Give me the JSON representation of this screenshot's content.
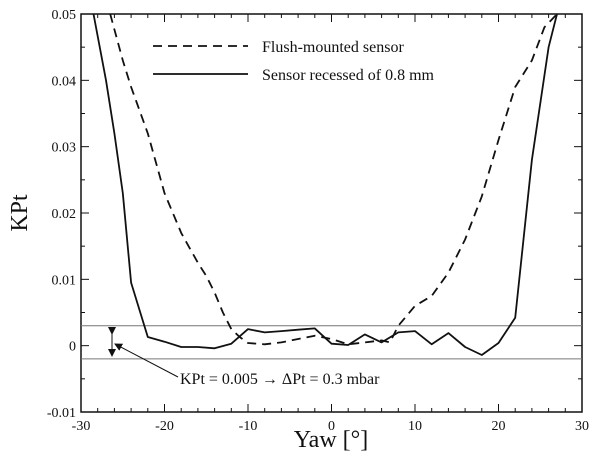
{
  "chart_data": {
    "type": "line",
    "xlabel": "Yaw [°]",
    "ylabel": "KPt",
    "xlim": [
      -30,
      30
    ],
    "ylim": [
      -0.01,
      0.05
    ],
    "xticks": [
      "-30",
      "-20",
      "-10",
      "0",
      "10",
      "20",
      "30"
    ],
    "yticks": [
      "-0.01",
      "0",
      "0.01",
      "0.02",
      "0.03",
      "0.04",
      "0.05"
    ],
    "grid": false,
    "legend_position": "top-center",
    "series": [
      {
        "name": "Flush-mounted sensor",
        "style": "dashed",
        "x": [
          -26.5,
          -25,
          -24,
          -22,
          -20,
          -18,
          -16,
          -15,
          -14,
          -13,
          -12,
          -11,
          -10,
          -8,
          -6,
          -4,
          -2,
          0,
          2,
          4,
          6,
          7,
          8,
          10,
          12,
          14,
          16,
          18,
          20,
          22,
          24,
          25.5,
          27
        ],
        "y": [
          0.05,
          0.043,
          0.039,
          0.032,
          0.023,
          0.017,
          0.0125,
          0.0105,
          0.008,
          0.005,
          0.0025,
          0.0013,
          0.0004,
          0.0002,
          0.0005,
          0.001,
          0.0015,
          0.001,
          0.0002,
          0.0005,
          0.0008,
          0.0005,
          0.003,
          0.006,
          0.0075,
          0.011,
          0.016,
          0.0225,
          0.031,
          0.039,
          0.043,
          0.048,
          0.05
        ]
      },
      {
        "name": "Sensor recessed of 0.8 mm",
        "style": "solid",
        "x": [
          -28.5,
          -27,
          -26,
          -25,
          -24,
          -22,
          -20,
          -18,
          -16,
          -14,
          -12,
          -10,
          -8,
          -6,
          -4,
          -2,
          0,
          2,
          4,
          6,
          8,
          10,
          12,
          14,
          16,
          18,
          20,
          22,
          24,
          26,
          27
        ],
        "y": [
          0.05,
          0.04,
          0.032,
          0.023,
          0.0095,
          0.0013,
          0.0006,
          -0.0002,
          -0.0002,
          -0.0004,
          0.0003,
          0.0025,
          0.002,
          0.0022,
          0.0024,
          0.0026,
          0.0003,
          0.0001,
          0.0017,
          0.0005,
          0.002,
          0.0022,
          0.0002,
          0.0019,
          -0.0002,
          -0.0014,
          0.0004,
          0.0042,
          0.028,
          0.045,
          0.05
        ]
      }
    ],
    "reference_lines": [
      0.003,
      -0.002
    ],
    "annotation": "KPt = 0.005 → ΔPt = 0.3 mbar"
  }
}
